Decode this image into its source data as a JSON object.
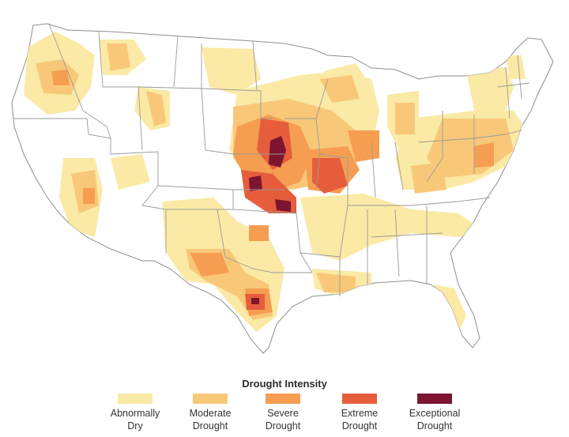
{
  "legend": {
    "title": "Drought Intensity",
    "categories": [
      {
        "label": "Abnormally\nDry",
        "color": "#fbe9a6"
      },
      {
        "label": "Moderate\nDrought",
        "color": "#f8c878"
      },
      {
        "label": "Severe\nDrought",
        "color": "#f59e52"
      },
      {
        "label": "Extreme\nDrought",
        "color": "#e65d3c"
      },
      {
        "label": "Exceptional\nDrought",
        "color": "#7d1430"
      }
    ]
  },
  "map": {
    "land_color": "#ffffff",
    "border_color": "#9a9a9a"
  }
}
